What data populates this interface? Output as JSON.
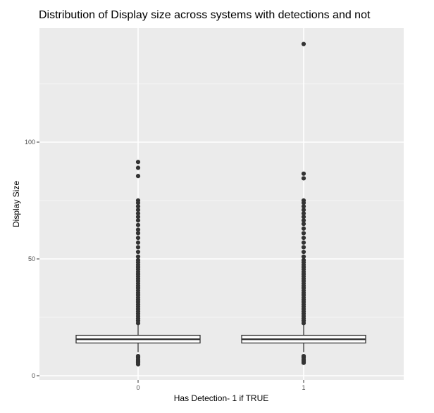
{
  "chart_data": {
    "type": "boxplot",
    "title": "Distribution of Display size across systems with detections and not",
    "xlabel": "Has Detection- 1 if TRUE",
    "ylabel": "Display Size",
    "categories": [
      "0",
      "1"
    ],
    "y_ticks": [
      0,
      50,
      100
    ],
    "ylim": [
      -1,
      146
    ],
    "grid": true,
    "background": "#ebebeb",
    "boxes": [
      {
        "category": "0",
        "q1": 14.0,
        "median": 15.6,
        "q3": 17.3,
        "whisker_low": 10.1,
        "whisker_high": 22.0,
        "outliers": [
          4.9,
          5.6,
          6.3,
          7.0,
          7.7,
          8.4,
          22.5,
          23.5,
          24.5,
          25.5,
          26.5,
          27.5,
          28.5,
          29.5,
          30.5,
          31.5,
          32.5,
          33.5,
          34.5,
          35.5,
          36.5,
          37.5,
          38.5,
          39.5,
          40.5,
          41.5,
          42.5,
          43.5,
          44.5,
          45.5,
          46.5,
          47.5,
          48.5,
          49.5,
          51.0,
          53.0,
          55.0,
          57.0,
          59.0,
          61.0,
          62.5,
          64.5,
          66.5,
          68.0,
          69.5,
          71.0,
          72.5,
          74.0,
          75.0,
          85.5,
          89.0,
          91.5
        ]
      },
      {
        "category": "1",
        "q1": 14.0,
        "median": 15.6,
        "q3": 17.3,
        "whisker_low": 10.1,
        "whisker_high": 22.0,
        "outliers": [
          5.5,
          6.3,
          7.0,
          7.7,
          8.4,
          22.5,
          23.5,
          24.5,
          25.5,
          26.5,
          27.5,
          28.5,
          29.5,
          30.5,
          31.5,
          32.5,
          33.5,
          34.5,
          35.5,
          36.5,
          37.5,
          38.5,
          39.5,
          40.5,
          41.5,
          42.5,
          43.5,
          44.5,
          45.5,
          46.5,
          47.5,
          48.5,
          49.5,
          51.0,
          53.0,
          55.0,
          57.0,
          59.0,
          61.0,
          63.0,
          65.0,
          66.5,
          68.0,
          69.5,
          71.0,
          72.5,
          74.0,
          75.0,
          84.5,
          86.5,
          142.0
        ]
      }
    ]
  }
}
